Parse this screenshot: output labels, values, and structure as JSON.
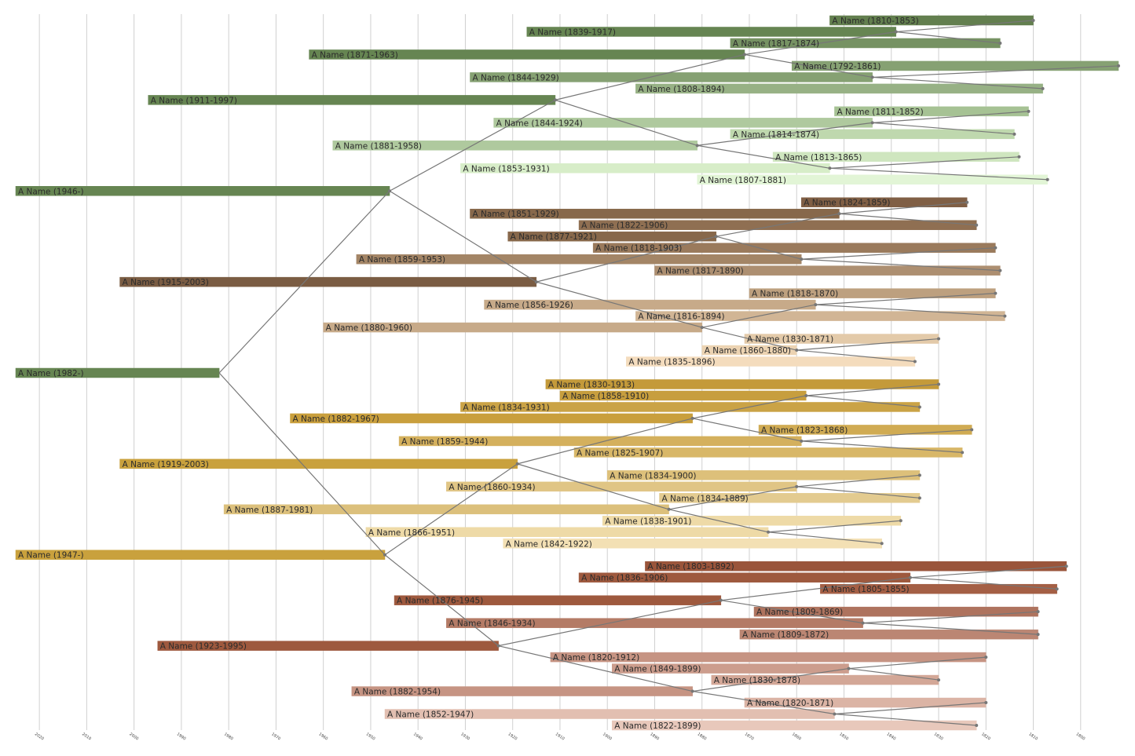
{
  "chart_data": {
    "type": "timeline",
    "xlim": [
      2025,
      1792
    ],
    "xticks": [
      2020,
      2010,
      2000,
      1990,
      1980,
      1970,
      1960,
      1950,
      1940,
      1930,
      1920,
      1910,
      1900,
      1890,
      1880,
      1870,
      1860,
      1850,
      1840,
      1830,
      1820,
      1810,
      1800
    ],
    "grid": true,
    "people": [
      {
        "label": "A Name (1810-1853)",
        "born": 1810,
        "died": 1853,
        "color": "#637f4f"
      },
      {
        "label": "A Name (1839-1917)",
        "born": 1839,
        "died": 1917,
        "color": "#668552"
      },
      {
        "label": "A Name (1817-1874)",
        "born": 1817,
        "died": 1874,
        "color": "#769263"
      },
      {
        "label": "A Name (1871-1963)",
        "born": 1871,
        "died": 1963,
        "color": "#668552"
      },
      {
        "label": "A Name (1792-1861)",
        "born": 1792,
        "died": 1861,
        "color": "#86a173"
      },
      {
        "label": "A Name (1844-1929)",
        "born": 1844,
        "died": 1929,
        "color": "#86a173"
      },
      {
        "label": "A Name (1808-1894)",
        "born": 1808,
        "died": 1894,
        "color": "#97b185"
      },
      {
        "label": "A Name (1911-1997)",
        "born": 1911,
        "died": 1997,
        "color": "#668552"
      },
      {
        "label": "A Name (1811-1852)",
        "born": 1811,
        "died": 1852,
        "color": "#a6c294"
      },
      {
        "label": "A Name (1844-1924)",
        "born": 1844,
        "died": 1924,
        "color": "#afc99e"
      },
      {
        "label": "A Name (1814-1874)",
        "born": 1814,
        "died": 1874,
        "color": "#bfd8ae"
      },
      {
        "label": "A Name (1881-1958)",
        "born": 1881,
        "died": 1958,
        "color": "#afc99e"
      },
      {
        "label": "A Name (1813-1865)",
        "born": 1813,
        "died": 1865,
        "color": "#cfe6bf"
      },
      {
        "label": "A Name (1853-1931)",
        "born": 1853,
        "died": 1931,
        "color": "#d7edc8"
      },
      {
        "label": "A Name (1807-1881)",
        "born": 1807,
        "died": 1881,
        "color": "#e2f5d6"
      },
      {
        "label": "A Name (1946-)",
        "born": 1946,
        "died": null,
        "color": "#668552"
      },
      {
        "label": "A Name (1824-1859)",
        "born": 1824,
        "died": 1859,
        "color": "#805f45"
      },
      {
        "label": "A Name (1851-1929)",
        "born": 1851,
        "died": 1929,
        "color": "#87684b"
      },
      {
        "label": "A Name (1822-1906)",
        "born": 1822,
        "died": 1906,
        "color": "#8f6f52"
      },
      {
        "label": "A Name (1877-1921)",
        "born": 1877,
        "died": 1921,
        "color": "#87684b"
      },
      {
        "label": "A Name (1818-1903)",
        "born": 1818,
        "died": 1903,
        "color": "#9a7a5c"
      },
      {
        "label": "A Name (1859-1953)",
        "born": 1859,
        "died": 1953,
        "color": "#a38566"
      },
      {
        "label": "A Name (1817-1890)",
        "born": 1817,
        "died": 1890,
        "color": "#ad8f71"
      },
      {
        "label": "A Name (1915-2003)",
        "born": 1915,
        "died": 2003,
        "color": "#7a5c43"
      },
      {
        "label": "A Name (1818-1870)",
        "born": 1818,
        "died": 1870,
        "color": "#bda07f"
      },
      {
        "label": "A Name (1856-1926)",
        "born": 1856,
        "died": 1926,
        "color": "#c7aa89"
      },
      {
        "label": "A Name (1816-1894)",
        "born": 1816,
        "died": 1894,
        "color": "#d1b595"
      },
      {
        "label": "A Name (1880-1960)",
        "born": 1880,
        "died": 1960,
        "color": "#c7aa89"
      },
      {
        "label": "A Name (1830-1871)",
        "born": 1830,
        "died": 1871,
        "color": "#e3caa9"
      },
      {
        "label": "A Name (1860-1880)",
        "born": 1860,
        "died": 1880,
        "color": "#ecd3b2"
      },
      {
        "label": "A Name (1835-1896)",
        "born": 1835,
        "died": 1896,
        "color": "#f4dcbd"
      },
      {
        "label": "A Name (1982-)",
        "born": 1982,
        "died": null,
        "color": "#668552"
      },
      {
        "label": "A Name (1830-1913)",
        "born": 1830,
        "died": 1913,
        "color": "#c49a3a"
      },
      {
        "label": "A Name (1858-1910)",
        "born": 1858,
        "died": 1910,
        "color": "#c79e3e"
      },
      {
        "label": "A Name (1834-1931)",
        "born": 1834,
        "died": 1931,
        "color": "#caa346"
      },
      {
        "label": "A Name (1882-1967)",
        "born": 1882,
        "died": 1967,
        "color": "#c99f3d"
      },
      {
        "label": "A Name (1823-1868)",
        "born": 1823,
        "died": 1868,
        "color": "#d0ab53"
      },
      {
        "label": "A Name (1859-1944)",
        "born": 1859,
        "died": 1944,
        "color": "#d4b05d"
      },
      {
        "label": "A Name (1825-1907)",
        "born": 1825,
        "died": 1907,
        "color": "#d8b768"
      },
      {
        "label": "A Name (1919-2003)",
        "born": 1919,
        "died": 2003,
        "color": "#c9a13d"
      },
      {
        "label": "A Name (1834-1900)",
        "born": 1834,
        "died": 1900,
        "color": "#ddc07a"
      },
      {
        "label": "A Name (1860-1934)",
        "born": 1860,
        "died": 1934,
        "color": "#e0c585"
      },
      {
        "label": "A Name (1834-1889)",
        "born": 1834,
        "died": 1889,
        "color": "#e3cb90"
      },
      {
        "label": "A Name (1887-1981)",
        "born": 1887,
        "died": 1981,
        "color": "#dcc07c"
      },
      {
        "label": "A Name (1838-1901)",
        "born": 1838,
        "died": 1901,
        "color": "#eedaa7"
      },
      {
        "label": "A Name (1866-1951)",
        "born": 1866,
        "died": 1951,
        "color": "#eedaa7"
      },
      {
        "label": "A Name (1842-1922)",
        "born": 1842,
        "died": 1922,
        "color": "#f3e0b4"
      },
      {
        "label": "A Name (1947-)",
        "born": 1947,
        "died": null,
        "color": "#c9a13d"
      },
      {
        "label": "A Name (1803-1892)",
        "born": 1803,
        "died": 1892,
        "color": "#9a553b"
      },
      {
        "label": "A Name (1836-1906)",
        "born": 1836,
        "died": 1906,
        "color": "#9e593e"
      },
      {
        "label": "A Name (1805-1855)",
        "born": 1805,
        "died": 1855,
        "color": "#a45f45"
      },
      {
        "label": "A Name (1876-1945)",
        "born": 1876,
        "died": 1945,
        "color": "#9e593e"
      },
      {
        "label": "A Name (1809-1869)",
        "born": 1809,
        "died": 1869,
        "color": "#ae735e"
      },
      {
        "label": "A Name (1846-1934)",
        "born": 1846,
        "died": 1934,
        "color": "#b47b66"
      },
      {
        "label": "A Name (1809-1872)",
        "born": 1809,
        "died": 1872,
        "color": "#bb8673"
      },
      {
        "label": "A Name (1923-1995)",
        "born": 1923,
        "died": 1995,
        "color": "#9e593e"
      },
      {
        "label": "A Name (1820-1912)",
        "born": 1820,
        "died": 1912,
        "color": "#c69483"
      },
      {
        "label": "A Name (1849-1899)",
        "born": 1849,
        "died": 1899,
        "color": "#cc9d8d"
      },
      {
        "label": "A Name (1830-1878)",
        "born": 1830,
        "died": 1878,
        "color": "#d3a797"
      },
      {
        "label": "A Name (1882-1954)",
        "born": 1882,
        "died": 1954,
        "color": "#c69483"
      },
      {
        "label": "A Name (1820-1871)",
        "born": 1820,
        "died": 1871,
        "color": "#dbb4a5"
      },
      {
        "label": "A Name (1852-1947)",
        "born": 1852,
        "died": 1947,
        "color": "#e2bfb1"
      },
      {
        "label": "A Name (1822-1899)",
        "born": 1822,
        "died": 1899,
        "color": "#e8c8bb"
      }
    ]
  }
}
